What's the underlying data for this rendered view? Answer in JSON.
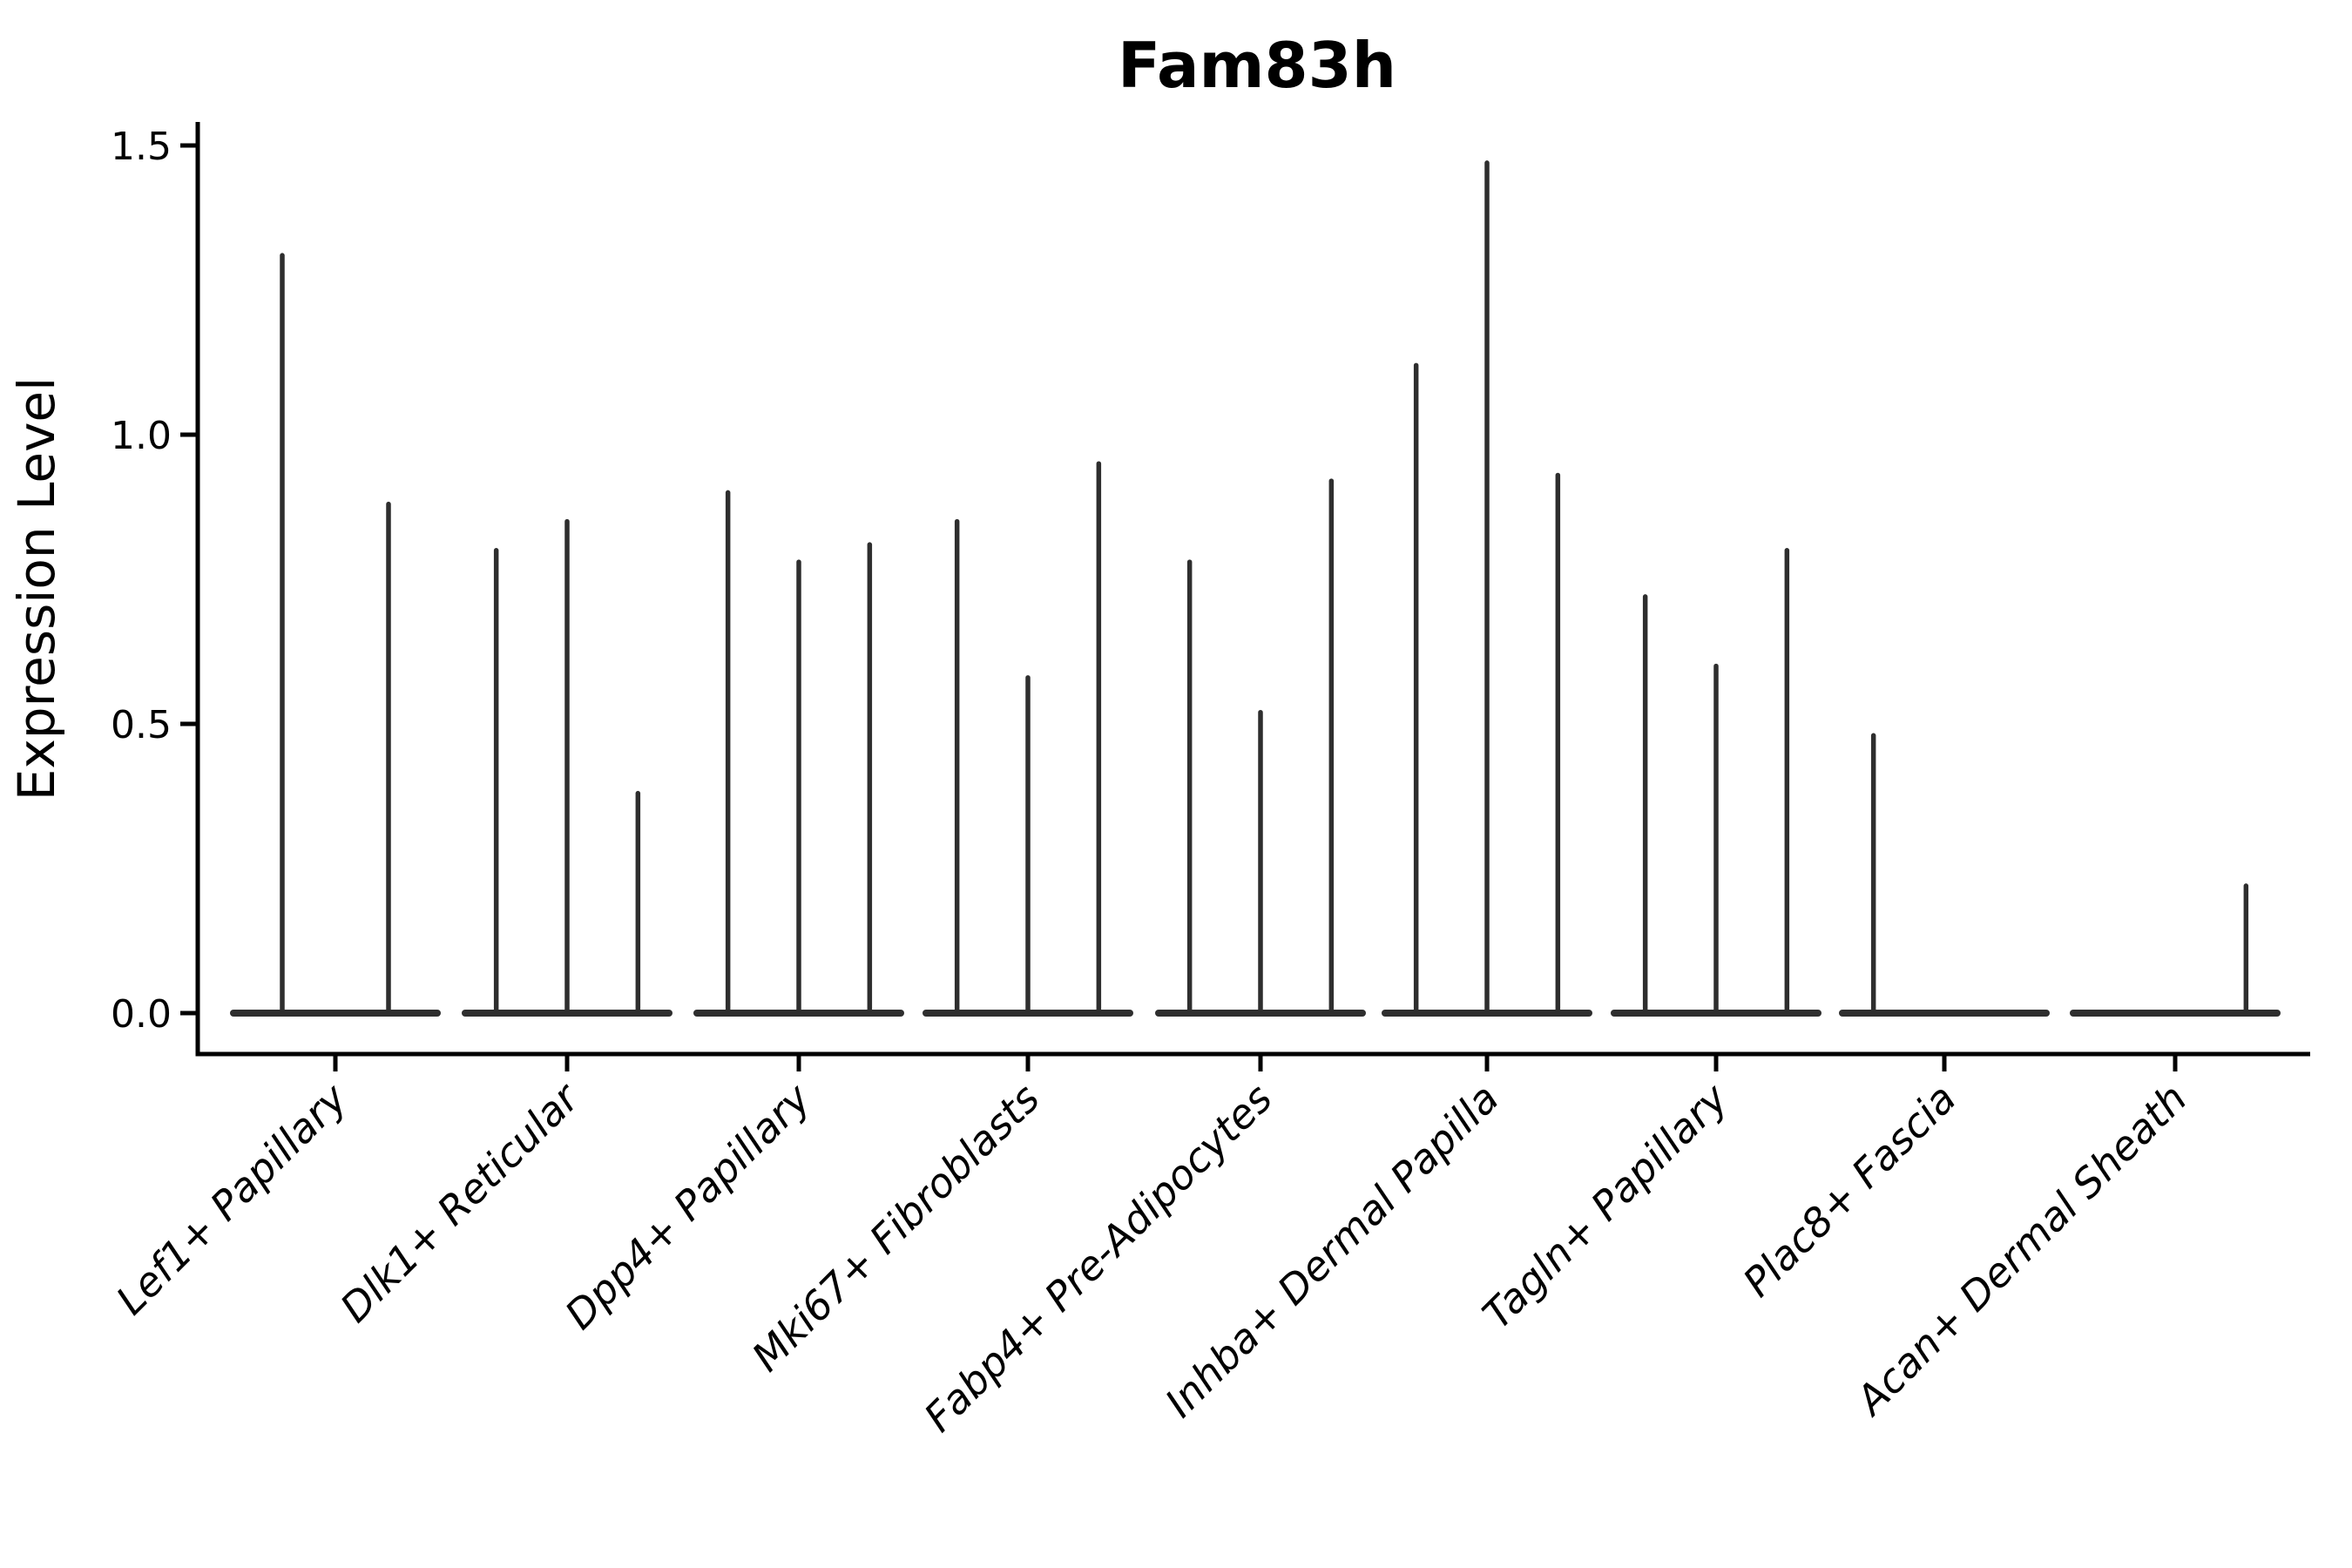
{
  "chart_data": {
    "type": "violin",
    "title": "Fam83h",
    "ylabel": "Expression Level",
    "xlabel": "",
    "yticks": [
      0.0,
      0.5,
      1.0,
      1.5
    ],
    "ytick_labels": [
      "0.0",
      "0.5",
      "1.0",
      "1.5"
    ],
    "ylim": [
      -0.07,
      1.54
    ],
    "grid": false,
    "legend": "none",
    "categories": [
      "Lef1+ Papillary",
      "Dlk1+ Reticular",
      "Dpp4+ Papillary",
      "Mki67+ Fibroblasts",
      "Fabp4+ Pre-Adipocytes",
      "Inhba+ Dermal Papilla",
      "Tagln+ Papillary",
      "Plac8+ Fascia",
      "Acan+ Dermal Sheath"
    ],
    "groups": [
      {
        "category": "Lef1+ Papillary",
        "violin_max_expression": [
          1.31,
          0.88
        ]
      },
      {
        "category": "Dlk1+ Reticular",
        "violin_max_expression": [
          0.8,
          0.85,
          0.38
        ]
      },
      {
        "category": "Dpp4+ Papillary",
        "violin_max_expression": [
          0.9,
          0.78,
          0.81
        ]
      },
      {
        "category": "Mki67+ Fibroblasts",
        "violin_max_expression": [
          0.85,
          0.58,
          0.95
        ]
      },
      {
        "category": "Fabp4+ Pre-Adipocytes",
        "violin_max_expression": [
          0.78,
          0.52,
          0.92
        ]
      },
      {
        "category": "Inhba+ Dermal Papilla",
        "violin_max_expression": [
          1.12,
          1.47,
          0.93
        ]
      },
      {
        "category": "Tagln+ Papillary",
        "violin_max_expression": [
          0.72,
          0.6,
          0.8
        ]
      },
      {
        "category": "Plac8+ Fascia",
        "violin_max_expression": [
          0.48,
          0,
          0
        ]
      },
      {
        "category": "Acan+ Dermal Sheath",
        "violin_max_expression": [
          0,
          0,
          0.22
        ]
      }
    ],
    "colors": {
      "violin_stroke": "#2e2e2e",
      "axis": "#000000",
      "text": "#000000",
      "background": "#ffffff"
    }
  }
}
